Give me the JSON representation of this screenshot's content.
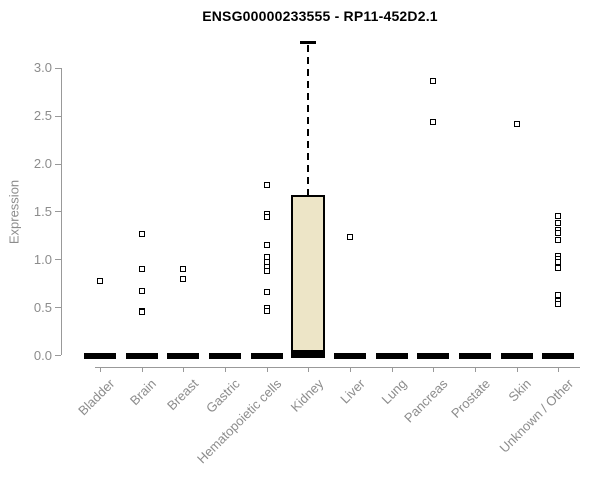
{
  "chart_data": {
    "type": "box",
    "title": "ENSG00000233555 - RP11-452D2.1",
    "ylabel": "Expression",
    "xlabel": "",
    "ylim": [
      0,
      3.3
    ],
    "yticks": [
      "0.0",
      "0.5",
      "1.0",
      "1.5",
      "2.0",
      "2.5",
      "3.0"
    ],
    "grid": false,
    "legend": false,
    "categories": [
      "Bladder",
      "Brain",
      "Breast",
      "Gastric",
      "Hematopoietic cells",
      "Kidney",
      "Liver",
      "Lung",
      "Pancreas",
      "Prostate",
      "Skin",
      "Unknown / Other"
    ],
    "series": [
      {
        "name": "Bladder",
        "box": {
          "q1": 0,
          "median": 0,
          "q3": 0,
          "whisker_low": 0,
          "whisker_high": 0
        },
        "outliers": [
          0.78
        ]
      },
      {
        "name": "Brain",
        "box": {
          "q1": 0,
          "median": 0,
          "q3": 0,
          "whisker_low": 0,
          "whisker_high": 0
        },
        "outliers": [
          1.27,
          0.9,
          0.67,
          0.47,
          0.45
        ]
      },
      {
        "name": "Breast",
        "box": {
          "q1": 0,
          "median": 0,
          "q3": 0,
          "whisker_low": 0,
          "whisker_high": 0
        },
        "outliers": [
          0.9,
          0.8
        ]
      },
      {
        "name": "Gastric",
        "box": {
          "q1": 0,
          "median": 0,
          "q3": 0,
          "whisker_low": 0,
          "whisker_high": 0
        },
        "outliers": []
      },
      {
        "name": "Hematopoietic cells",
        "box": {
          "q1": 0,
          "median": 0,
          "q3": 0,
          "whisker_low": 0,
          "whisker_high": 0
        },
        "outliers": [
          1.78,
          1.48,
          1.45,
          1.15,
          1.03,
          0.98,
          0.93,
          0.88,
          0.66,
          0.5,
          0.46
        ]
      },
      {
        "name": "Kidney",
        "box": {
          "q1": 0,
          "median": 0.03,
          "q3": 1.68,
          "whisker_low": 0,
          "whisker_high": 3.27
        },
        "outliers": []
      },
      {
        "name": "Liver",
        "box": {
          "q1": 0,
          "median": 0,
          "q3": 0,
          "whisker_low": 0,
          "whisker_high": 0
        },
        "outliers": [
          1.24
        ]
      },
      {
        "name": "Lung",
        "box": {
          "q1": 0,
          "median": 0,
          "q3": 0,
          "whisker_low": 0,
          "whisker_high": 0
        },
        "outliers": []
      },
      {
        "name": "Pancreas",
        "box": {
          "q1": 0,
          "median": 0,
          "q3": 0,
          "whisker_low": 0,
          "whisker_high": 0
        },
        "outliers": [
          2.87,
          2.44
        ]
      },
      {
        "name": "Prostate",
        "box": {
          "q1": 0,
          "median": 0,
          "q3": 0,
          "whisker_low": 0,
          "whisker_high": 0
        },
        "outliers": []
      },
      {
        "name": "Skin",
        "box": {
          "q1": 0,
          "median": 0,
          "q3": 0,
          "whisker_low": 0,
          "whisker_high": 0
        },
        "outliers": [
          2.42
        ]
      },
      {
        "name": "Unknown / Other",
        "box": {
          "q1": 0,
          "median": 0,
          "q3": 0,
          "whisker_low": 0,
          "whisker_high": 0
        },
        "outliers": [
          1.46,
          1.38,
          1.31,
          1.28,
          1.21,
          1.04,
          1.01,
          0.98,
          0.91,
          0.63,
          0.57,
          0.54
        ]
      }
    ],
    "colors": {
      "box_fill": "#EDE5C7",
      "box_border": "#000000",
      "point": "#000000",
      "axis": "#999999",
      "tick_label": "#8c8c8c",
      "title": "#000000",
      "background": "#ffffff"
    }
  }
}
